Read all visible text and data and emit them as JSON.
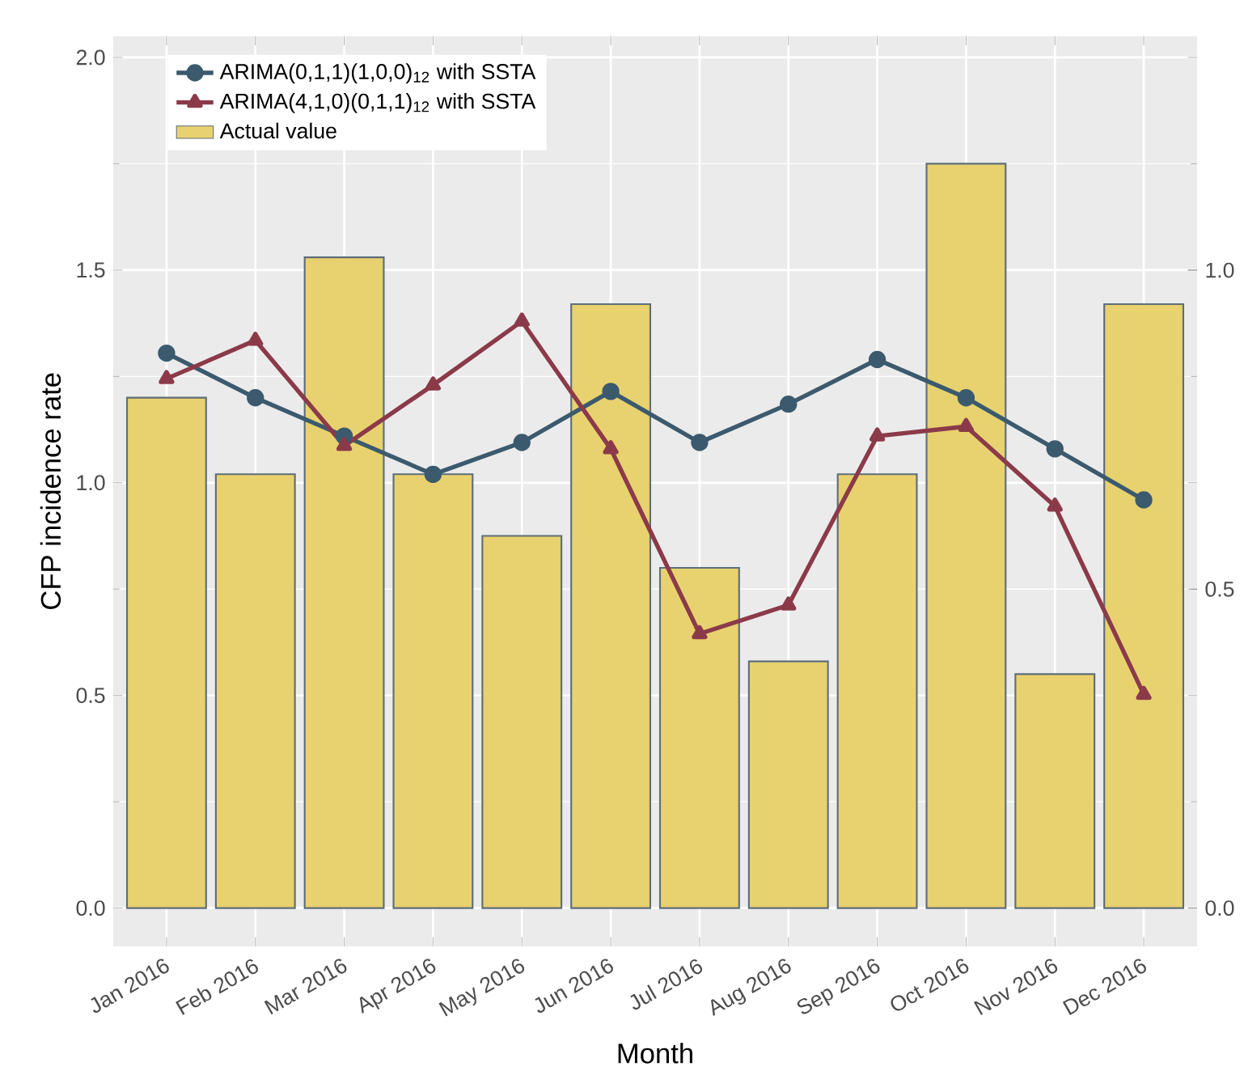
{
  "chart_data": {
    "type": "bar",
    "xlabel": "Month",
    "ylabel": "CFP incidence rate",
    "categories": [
      "Jan 2016",
      "Feb 2016",
      "Mar 2016",
      "Apr 2016",
      "May 2016",
      "Jun 2016",
      "Jul 2016",
      "Aug 2016",
      "Sep 2016",
      "Oct 2016",
      "Nov 2016",
      "Dec 2016"
    ],
    "series": [
      {
        "name": "ARIMA(0,1,1)(1,0,0)$_{12}$ with SSTA",
        "type": "line",
        "axis": "y2",
        "marker": "circle",
        "color": "#3b5a6e",
        "values": [
          0.87,
          0.8,
          0.74,
          0.68,
          0.73,
          0.81,
          0.73,
          0.79,
          0.86,
          0.8,
          0.72,
          0.64
        ]
      },
      {
        "name": "ARIMA(4,1,0)(0,1,1)$_{12}$ with SSTA",
        "type": "line",
        "axis": "y2",
        "marker": "triangle",
        "color": "#8b3a4a",
        "values": [
          0.83,
          0.89,
          0.725,
          0.82,
          0.92,
          0.72,
          0.43,
          0.475,
          0.74,
          0.755,
          0.63,
          0.335
        ]
      },
      {
        "name": "Actual value",
        "color": "#e8d26f",
        "values": [
          1.2,
          1.02,
          1.53,
          1.02,
          0.875,
          1.42,
          0.8,
          0.58,
          1.02,
          1.75,
          0.55,
          1.42
        ]
      }
    ],
    "ylim": [
      -0.09,
      2.05
    ],
    "yticks": [
      {
        "value": 0,
        "label": "0.0"
      },
      {
        "value": 0.5,
        "label": "0.5"
      },
      {
        "value": 1,
        "label": "1.0"
      },
      {
        "value": 1.5,
        "label": "1.5"
      },
      {
        "value": 2,
        "label": "2.0"
      }
    ],
    "y2lim": [
      -0.06,
      1.367
    ],
    "y2ticks": [
      {
        "value": 0,
        "label": "0.0"
      },
      {
        "value": 0.5,
        "label": "0.5"
      },
      {
        "value": 1,
        "label": "1.0"
      }
    ],
    "grid": true,
    "legend": "top left"
  }
}
